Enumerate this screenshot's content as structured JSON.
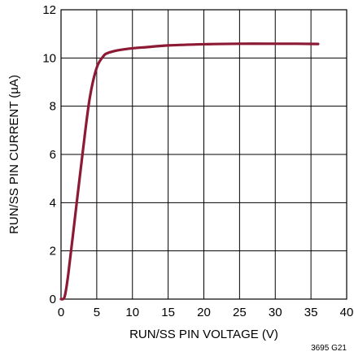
{
  "chart_data": {
    "type": "line",
    "title": "",
    "xlabel": "RUN/SS PIN VOLTAGE (V)",
    "ylabel": "RUN/SS PIN CURRENT (µA)",
    "xlim": [
      0,
      40
    ],
    "ylim": [
      0,
      12
    ],
    "x_ticks": [
      0,
      5,
      10,
      15,
      20,
      25,
      30,
      35,
      40
    ],
    "y_ticks": [
      0,
      2,
      4,
      6,
      8,
      10,
      12
    ],
    "grid": true,
    "legend": "none",
    "series": [
      {
        "color": "#8c1a35",
        "x": [
          0,
          0.5,
          1,
          2,
          3,
          4,
          5,
          6,
          6.5,
          7,
          8,
          10,
          12,
          15,
          20,
          25,
          30,
          33,
          36
        ],
        "y": [
          0,
          0.1,
          1.0,
          3.5,
          6.0,
          8.3,
          9.6,
          10.1,
          10.2,
          10.25,
          10.32,
          10.4,
          10.45,
          10.52,
          10.57,
          10.59,
          10.59,
          10.59,
          10.58
        ]
      }
    ],
    "figure_id": "3695 G21"
  }
}
